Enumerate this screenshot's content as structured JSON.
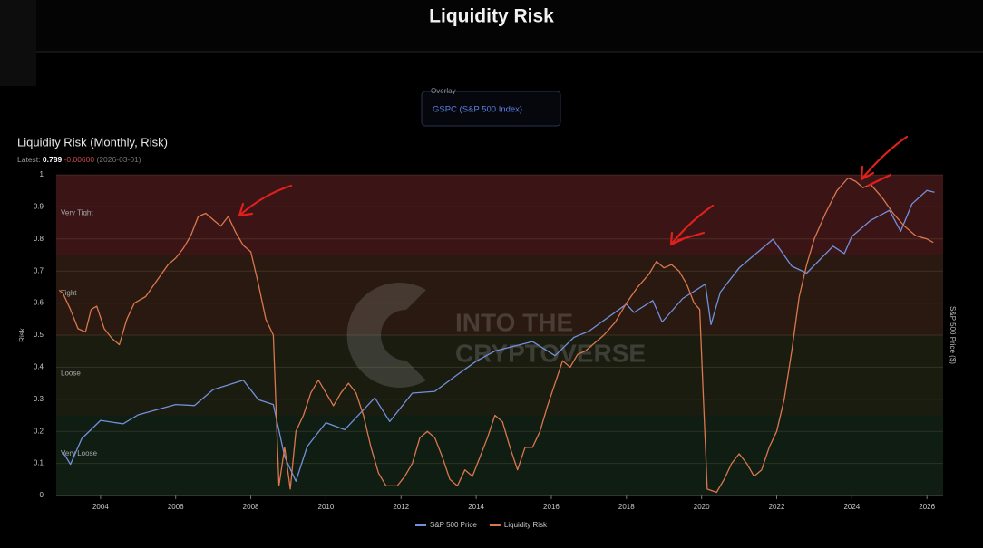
{
  "header": {
    "title": "Liquidity Risk"
  },
  "overlay": {
    "label": "Overlay",
    "value": "GSPC (S&P 500 Index)"
  },
  "chart_data": {
    "type": "line",
    "title": "Liquidity Risk (Monthly, Risk)",
    "latest": {
      "label": "Latest:",
      "value": 0.789,
      "change": "-0.00600",
      "date": "(2026-03-01)"
    },
    "watermark": [
      "INTO THE",
      "CRYPTOVERSE"
    ],
    "y_label": "Risk",
    "y2_label": "S&P 500 Price ($)",
    "xlim": [
      2002.82,
      2026.43
    ],
    "xticks": [
      2004,
      2006,
      2008,
      2010,
      2012,
      2014,
      2016,
      2018,
      2020,
      2022,
      2024,
      2026
    ],
    "ylim": [
      0,
      1
    ],
    "yticks": [
      0,
      0.1,
      0.2,
      0.3,
      0.4,
      0.5,
      0.6,
      0.7,
      0.8,
      0.9,
      1
    ],
    "y2lim": [
      626,
      7800
    ],
    "y2scale": "log",
    "grid": true,
    "legend": "bottom",
    "zones": [
      {
        "label": "Very Tight",
        "range": [
          0.75,
          1
        ],
        "color": "#3b1515"
      },
      {
        "label": "Tight",
        "range": [
          0.5,
          0.75
        ],
        "color": "#291910"
      },
      {
        "label": "Loose",
        "range": [
          0.25,
          0.5
        ],
        "color": "#1a1c10"
      },
      {
        "label": "Very Loose",
        "range": [
          0,
          0.25
        ],
        "color": "#101d12"
      }
    ],
    "series": [
      {
        "name": "S&P 500 Price",
        "color": "#7290dc",
        "axis": "y2",
        "x": [
          2003.0,
          2003.2,
          2003.5,
          2004.0,
          2004.6,
          2005.0,
          2006.0,
          2006.5,
          2007.0,
          2007.8,
          2008.2,
          2008.6,
          2008.9,
          2009.2,
          2009.5,
          2010.0,
          2010.5,
          2011.3,
          2011.7,
          2012.3,
          2012.9,
          2013.5,
          2014.0,
          2014.5,
          2015.5,
          2016.1,
          2016.6,
          2017.0,
          2018.0,
          2018.2,
          2018.7,
          2018.95,
          2019.5,
          2020.1,
          2020.25,
          2020.5,
          2021.0,
          2021.9,
          2022.4,
          2022.8,
          2023.5,
          2023.8,
          2024.0,
          2024.5,
          2025.0,
          2025.3,
          2025.6,
          2026.0,
          2026.2
        ],
        "values": [
          880,
          800,
          980,
          1130,
          1100,
          1180,
          1280,
          1270,
          1440,
          1550,
          1330,
          1280,
          850,
          700,
          920,
          1110,
          1050,
          1350,
          1120,
          1400,
          1420,
          1620,
          1800,
          1950,
          2100,
          1880,
          2170,
          2280,
          2820,
          2640,
          2900,
          2450,
          2950,
          3300,
          2400,
          3100,
          3750,
          4700,
          3800,
          3600,
          4450,
          4200,
          4800,
          5450,
          5900,
          5000,
          6200,
          6900,
          6800
        ]
      },
      {
        "name": "Liquidity Risk",
        "color": "#d9774f",
        "x": [
          2002.9,
          2003.0,
          2003.2,
          2003.4,
          2003.6,
          2003.75,
          2003.9,
          2004.1,
          2004.3,
          2004.5,
          2004.7,
          2004.9,
          2005.2,
          2005.5,
          2005.8,
          2006.0,
          2006.2,
          2006.4,
          2006.6,
          2006.8,
          2007.0,
          2007.2,
          2007.4,
          2007.6,
          2007.8,
          2008.0,
          2008.2,
          2008.4,
          2008.6,
          2008.75,
          2008.9,
          2009.05,
          2009.2,
          2009.4,
          2009.6,
          2009.8,
          2010.0,
          2010.2,
          2010.4,
          2010.6,
          2010.8,
          2011.0,
          2011.2,
          2011.4,
          2011.6,
          2011.9,
          2012.1,
          2012.3,
          2012.5,
          2012.7,
          2012.9,
          2013.1,
          2013.3,
          2013.5,
          2013.7,
          2013.9,
          2014.1,
          2014.3,
          2014.5,
          2014.7,
          2014.9,
          2015.1,
          2015.3,
          2015.5,
          2015.7,
          2015.9,
          2016.1,
          2016.3,
          2016.5,
          2016.7,
          2016.9,
          2017.1,
          2017.4,
          2017.7,
          2018.0,
          2018.3,
          2018.6,
          2018.8,
          2019.0,
          2019.2,
          2019.4,
          2019.6,
          2019.8,
          2019.95,
          2020.05,
          2020.15,
          2020.4,
          2020.6,
          2020.8,
          2021.0,
          2021.2,
          2021.4,
          2021.6,
          2021.8,
          2022.0,
          2022.2,
          2022.4,
          2022.6,
          2022.8,
          2023.0,
          2023.3,
          2023.6,
          2023.9,
          2024.1,
          2024.3,
          2024.5,
          2024.8,
          2025.1,
          2025.4,
          2025.7,
          2026.0,
          2026.17
        ],
        "values": [
          0.64,
          0.63,
          0.58,
          0.52,
          0.51,
          0.58,
          0.59,
          0.52,
          0.49,
          0.47,
          0.55,
          0.6,
          0.62,
          0.67,
          0.72,
          0.74,
          0.77,
          0.81,
          0.87,
          0.88,
          0.86,
          0.84,
          0.87,
          0.82,
          0.78,
          0.76,
          0.66,
          0.55,
          0.5,
          0.03,
          0.15,
          0.02,
          0.2,
          0.25,
          0.32,
          0.36,
          0.32,
          0.28,
          0.32,
          0.35,
          0.32,
          0.25,
          0.15,
          0.07,
          0.03,
          0.03,
          0.06,
          0.1,
          0.18,
          0.2,
          0.18,
          0.12,
          0.05,
          0.03,
          0.08,
          0.06,
          0.12,
          0.18,
          0.25,
          0.23,
          0.15,
          0.08,
          0.15,
          0.15,
          0.2,
          0.28,
          0.35,
          0.42,
          0.4,
          0.44,
          0.45,
          0.47,
          0.5,
          0.54,
          0.6,
          0.65,
          0.69,
          0.73,
          0.71,
          0.72,
          0.7,
          0.66,
          0.6,
          0.58,
          0.3,
          0.02,
          0.01,
          0.05,
          0.1,
          0.13,
          0.1,
          0.06,
          0.08,
          0.15,
          0.2,
          0.3,
          0.45,
          0.62,
          0.72,
          0.8,
          0.88,
          0.95,
          0.99,
          0.98,
          0.96,
          0.97,
          0.93,
          0.88,
          0.84,
          0.81,
          0.8,
          0.789
        ]
      }
    ]
  }
}
